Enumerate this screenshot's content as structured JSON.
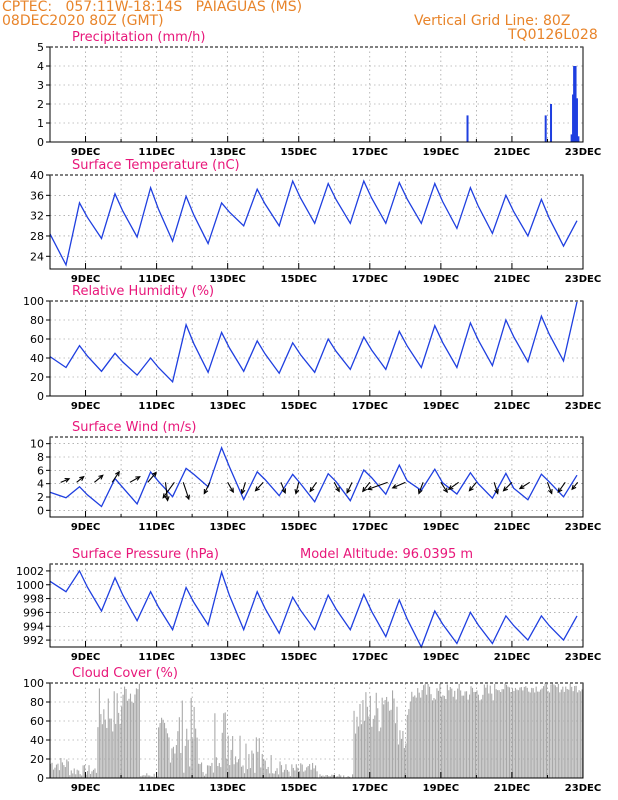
{
  "header": {
    "line1": "CPTEC:   057:11W-18:14S   PAIAGUAS (MS)",
    "line2": "08DEC2020 80Z (GMT)",
    "vgrid": "Vertical Grid Line: 80Z",
    "code": "TQ0126L028"
  },
  "colors": {
    "header": "#e8842a",
    "title": "#e8177a",
    "line": "#1f3fe0",
    "cloud": "#a8a8a8",
    "wind_arrow": "#000000",
    "grid": "#888888"
  },
  "chart_data": [
    {
      "type": "bar",
      "title": "Precipitation  (mm/h)",
      "x_tick_labels": [
        "9DEC",
        "11DEC",
        "13DEC",
        "15DEC",
        "17DEC",
        "19DEC",
        "21DEC",
        "23DEC"
      ],
      "x_range_days": [
        8,
        23
      ],
      "ylim": [
        0,
        5
      ],
      "y_ticks": [
        0,
        1,
        2,
        3,
        4,
        5
      ],
      "grid": true,
      "series": [
        {
          "day": 19.75,
          "value": 1.4
        },
        {
          "day": 21.95,
          "value": 1.4
        },
        {
          "day": 22.1,
          "value": 2.0
        },
        {
          "day": 22.68,
          "value": 0.4
        },
        {
          "day": 22.72,
          "value": 2.5
        },
        {
          "day": 22.75,
          "value": 4.0
        },
        {
          "day": 22.79,
          "value": 4.0
        },
        {
          "day": 22.83,
          "value": 2.3
        },
        {
          "day": 22.87,
          "value": 0.3
        }
      ]
    },
    {
      "type": "line",
      "title": "Surface Temperature  (nC)",
      "x_tick_labels": [
        "9DEC",
        "11DEC",
        "13DEC",
        "15DEC",
        "17DEC",
        "19DEC",
        "21DEC",
        "23DEC"
      ],
      "x_range_days": [
        8,
        23
      ],
      "ylim": [
        21.5,
        40
      ],
      "y_ticks": [
        24,
        28,
        32,
        36,
        40
      ],
      "grid": true,
      "daily": [
        {
          "min": 22.3,
          "max": 34.5
        },
        {
          "min": 27.5,
          "max": 36.3
        },
        {
          "min": 27.8,
          "max": 37.5
        },
        {
          "min": 27.0,
          "max": 35.8
        },
        {
          "min": 26.5,
          "max": 34.5
        },
        {
          "min": 30.0,
          "max": 37.2
        },
        {
          "min": 30.0,
          "max": 38.8
        },
        {
          "min": 30.5,
          "max": 38.3
        },
        {
          "min": 30.5,
          "max": 38.8
        },
        {
          "min": 30.5,
          "max": 38.5
        },
        {
          "min": 30.5,
          "max": 38.3
        },
        {
          "min": 29.5,
          "max": 37.5
        },
        {
          "min": 28.5,
          "max": 36.0
        },
        {
          "min": 28.0,
          "max": 35.2
        },
        {
          "min": 26.0,
          "max": 31.0
        },
        {
          "min": 27.0,
          "max": 27.0
        }
      ]
    },
    {
      "type": "line",
      "title": "Relative Humidity  (%)",
      "x_tick_labels": [
        "9DEC",
        "11DEC",
        "13DEC",
        "15DEC",
        "17DEC",
        "19DEC",
        "21DEC",
        "23DEC"
      ],
      "x_range_days": [
        8,
        23
      ],
      "ylim": [
        0,
        100
      ],
      "y_ticks": [
        0,
        20,
        40,
        60,
        80,
        100
      ],
      "grid": true,
      "daily": [
        {
          "min": 30,
          "max": 53
        },
        {
          "min": 26,
          "max": 45
        },
        {
          "min": 22,
          "max": 40
        },
        {
          "min": 15,
          "max": 75
        },
        {
          "min": 25,
          "max": 67
        },
        {
          "min": 26,
          "max": 58
        },
        {
          "min": 24,
          "max": 56
        },
        {
          "min": 25,
          "max": 60
        },
        {
          "min": 28,
          "max": 62
        },
        {
          "min": 28,
          "max": 68
        },
        {
          "min": 30,
          "max": 74
        },
        {
          "min": 30,
          "max": 77
        },
        {
          "min": 32,
          "max": 80
        },
        {
          "min": 36,
          "max": 84
        },
        {
          "min": 37,
          "max": 99
        },
        {
          "min": 50,
          "max": 97
        }
      ]
    },
    {
      "type": "line",
      "title": "Surface Wind  (m/s)",
      "x_tick_labels": [
        "9DEC",
        "11DEC",
        "13DEC",
        "15DEC",
        "17DEC",
        "19DEC",
        "21DEC",
        "23DEC"
      ],
      "x_range_days": [
        8,
        23
      ],
      "ylim": [
        -1,
        11
      ],
      "y_ticks": [
        0,
        2,
        4,
        6,
        8,
        10
      ],
      "grid": true,
      "daily": [
        {
          "min": 1.5,
          "max": 3.0
        },
        {
          "min": 0.5,
          "max": 4.5
        },
        {
          "min": 1.5,
          "max": 5.5
        },
        {
          "min": 1.8,
          "max": 6.5
        },
        {
          "min": 3.0,
          "max": 8.8
        },
        {
          "min": 2.0,
          "max": 6.2
        },
        {
          "min": 1.8,
          "max": 5.8
        },
        {
          "min": 1.5,
          "max": 5.5
        },
        {
          "min": 2.0,
          "max": 6.0
        },
        {
          "min": 2.5,
          "max": 6.5
        },
        {
          "min": 2.5,
          "max": 6.2
        },
        {
          "min": 2.0,
          "max": 6.0
        },
        {
          "min": 1.5,
          "max": 5.8
        },
        {
          "min": 1.0,
          "max": 5.8
        },
        {
          "min": 1.5,
          "max": 5.5
        },
        {
          "min": 2.0,
          "max": 5.5
        }
      ],
      "arrows": [
        {
          "day": 8.3,
          "u": 1.2,
          "v": 0.5
        },
        {
          "day": 8.75,
          "u": 1.0,
          "v": 0.8
        },
        {
          "day": 9.25,
          "u": 1.2,
          "v": 1.0
        },
        {
          "day": 9.75,
          "u": 1.0,
          "v": 1.5
        },
        {
          "day": 10.25,
          "u": 1.4,
          "v": 0.8
        },
        {
          "day": 10.75,
          "u": 1.2,
          "v": 1.4
        },
        {
          "day": 11.25,
          "u": 0.3,
          "v": -2.6
        },
        {
          "day": 11.5,
          "u": -1.6,
          "v": -2.2
        },
        {
          "day": 11.75,
          "u": 0.8,
          "v": -2.4
        },
        {
          "day": 12.5,
          "u": -0.8,
          "v": -1.6
        },
        {
          "day": 13.0,
          "u": 0.8,
          "v": -1.4
        },
        {
          "day": 13.5,
          "u": -0.5,
          "v": -1.6
        },
        {
          "day": 14.0,
          "u": -1.1,
          "v": -1.2
        },
        {
          "day": 14.5,
          "u": 0.6,
          "v": -1.5
        },
        {
          "day": 15.0,
          "u": -0.4,
          "v": -1.6
        },
        {
          "day": 15.5,
          "u": -0.9,
          "v": -1.3
        },
        {
          "day": 16.0,
          "u": 0.7,
          "v": -1.3
        },
        {
          "day": 16.5,
          "u": -0.7,
          "v": -1.5
        },
        {
          "day": 17.0,
          "u": -1.0,
          "v": -1.3
        },
        {
          "day": 17.5,
          "u": -2.8,
          "v": -1.0
        },
        {
          "day": 18.0,
          "u": -1.8,
          "v": -0.8
        },
        {
          "day": 18.5,
          "u": -0.6,
          "v": -1.6
        },
        {
          "day": 19.0,
          "u": 0.9,
          "v": -1.4
        },
        {
          "day": 19.5,
          "u": -1.4,
          "v": -1.0
        },
        {
          "day": 20.0,
          "u": -1.0,
          "v": -1.2
        },
        {
          "day": 20.5,
          "u": 0.5,
          "v": -1.6
        },
        {
          "day": 21.0,
          "u": -1.2,
          "v": -1.2
        },
        {
          "day": 21.5,
          "u": -1.4,
          "v": -0.9
        },
        {
          "day": 22.0,
          "u": 0.6,
          "v": -1.6
        },
        {
          "day": 22.5,
          "u": -1.0,
          "v": -1.4
        },
        {
          "day": 22.85,
          "u": -0.8,
          "v": -1.0
        }
      ]
    },
    {
      "type": "line",
      "title": "Surface Pressure  (hPa)",
      "annotation": "Model Altitude: 96.0395  m",
      "x_tick_labels": [
        "9DEC",
        "11DEC",
        "13DEC",
        "15DEC",
        "17DEC",
        "19DEC",
        "21DEC",
        "23DEC"
      ],
      "x_range_days": [
        8,
        23
      ],
      "ylim": [
        991,
        1003
      ],
      "y_ticks": [
        992,
        994,
        996,
        998,
        1000,
        1002
      ],
      "grid": true,
      "daily": [
        {
          "min": 999.0,
          "max": 1002.0
        },
        {
          "min": 996.2,
          "max": 1001.0
        },
        {
          "min": 994.8,
          "max": 999.0
        },
        {
          "min": 993.5,
          "max": 999.6
        },
        {
          "min": 994.2,
          "max": 1001.8
        },
        {
          "min": 993.5,
          "max": 999.0
        },
        {
          "min": 993.0,
          "max": 998.2
        },
        {
          "min": 993.5,
          "max": 998.5
        },
        {
          "min": 993.5,
          "max": 998.6
        },
        {
          "min": 992.5,
          "max": 997.8
        },
        {
          "min": 991.0,
          "max": 996.2
        },
        {
          "min": 991.5,
          "max": 996.0
        },
        {
          "min": 991.5,
          "max": 995.5
        },
        {
          "min": 992.0,
          "max": 995.5
        },
        {
          "min": 992.0,
          "max": 995.5
        },
        {
          "min": 992.2,
          "max": 994.0
        }
      ]
    },
    {
      "type": "bar",
      "title": "Cloud Cover  (%)",
      "x_tick_labels": [
        "9DEC",
        "11DEC",
        "13DEC",
        "15DEC",
        "17DEC",
        "19DEC",
        "21DEC",
        "23DEC"
      ],
      "x_range_days": [
        8,
        23
      ],
      "ylim": [
        0,
        100
      ],
      "y_ticks": [
        0,
        20,
        40,
        60,
        80,
        100
      ],
      "grid": true,
      "segments": [
        {
          "from": 8.0,
          "to": 8.5,
          "base": 15,
          "amp": 8
        },
        {
          "from": 8.5,
          "to": 9.3,
          "base": 8,
          "amp": 6
        },
        {
          "from": 9.3,
          "to": 10.0,
          "base": 70,
          "amp": 25
        },
        {
          "from": 10.0,
          "to": 10.5,
          "base": 90,
          "amp": 12
        },
        {
          "from": 10.5,
          "to": 11.0,
          "base": 3,
          "amp": 3
        },
        {
          "from": 11.0,
          "to": 11.6,
          "base": 40,
          "amp": 25
        },
        {
          "from": 11.6,
          "to": 12.2,
          "base": 45,
          "amp": 40
        },
        {
          "from": 12.2,
          "to": 12.6,
          "base": 10,
          "amp": 8
        },
        {
          "from": 12.6,
          "to": 13.2,
          "base": 45,
          "amp": 35
        },
        {
          "from": 13.2,
          "to": 13.9,
          "base": 30,
          "amp": 25
        },
        {
          "from": 13.9,
          "to": 14.5,
          "base": 15,
          "amp": 12
        },
        {
          "from": 14.5,
          "to": 15.5,
          "base": 8,
          "amp": 8
        },
        {
          "from": 15.5,
          "to": 16.5,
          "base": 2,
          "amp": 2
        },
        {
          "from": 16.5,
          "to": 17.3,
          "base": 70,
          "amp": 25
        },
        {
          "from": 17.3,
          "to": 17.7,
          "base": 85,
          "amp": 15
        },
        {
          "from": 17.7,
          "to": 18.1,
          "base": 55,
          "amp": 25
        },
        {
          "from": 18.1,
          "to": 20.5,
          "base": 90,
          "amp": 10
        },
        {
          "from": 20.5,
          "to": 23.0,
          "base": 95,
          "amp": 5
        }
      ]
    }
  ]
}
